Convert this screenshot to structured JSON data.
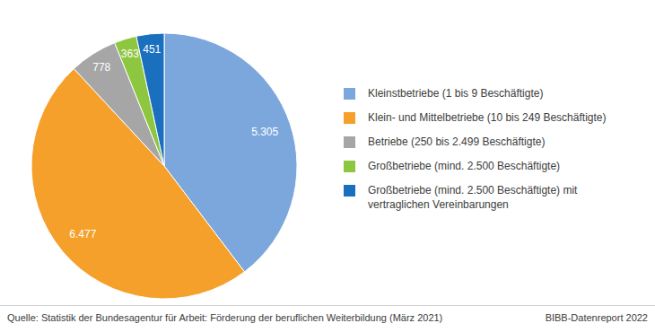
{
  "chart_data": {
    "type": "pie",
    "categories": [
      "Kleinstbetriebe (1 bis 9 Beschäftigte)",
      "Klein- und Mittelbetriebe (10 bis 249 Beschäftigte)",
      "Betriebe (250 bis 2.499 Beschäftigte)",
      "Großbetriebe (mind. 2.500 Beschäftigte)",
      "Großbetriebe (mind. 2.500 Beschäftigte) mit vertraglichen Vereinbarungen"
    ],
    "values": [
      5305,
      6477,
      778,
      363,
      451
    ],
    "value_labels": [
      "5.305",
      "6.477",
      "778",
      "363",
      "451"
    ],
    "colors": [
      "#7ba7dc",
      "#f5a02a",
      "#a6a6a6",
      "#8dc63f",
      "#1a6fbf"
    ],
    "data_labels": true,
    "legend": "right",
    "source": "Quelle: Statistik der Bundesagentur für Arbeit: Förderung der beruflichen Weiterbildung (März 2021)",
    "note": "BIBB-Datenreport 2022"
  }
}
